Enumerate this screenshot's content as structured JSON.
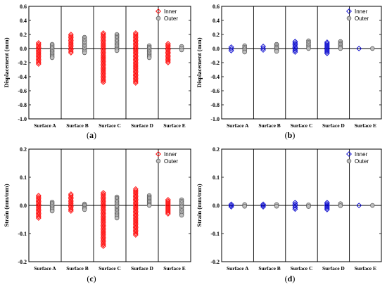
{
  "figure": {
    "panels": [
      {
        "letter": "a"
      },
      {
        "letter": "b"
      },
      {
        "letter": "c"
      },
      {
        "letter": "d"
      }
    ]
  },
  "chart_data": [
    {
      "type": "scatter",
      "ylabel": "Displacement (mm)",
      "ylim": [
        -1.0,
        0.6
      ],
      "yticks": [
        -1.0,
        -0.8,
        -0.6,
        -0.4,
        -0.2,
        0.0,
        0.2,
        0.4,
        0.6
      ],
      "tick_labels": [
        "-1.0",
        "-0.8",
        "-0.6",
        "-0.4",
        "-0.2",
        "0.0",
        "0.2",
        "0.4",
        "0.6"
      ],
      "categories": [
        "Surface A",
        "Surface B",
        "Surface C",
        "Surface D",
        "Surface E"
      ],
      "legend_position": "top-right",
      "series": [
        {
          "name": "Inner",
          "color": "#ff0000",
          "marker": "diamond-open",
          "ranges": [
            [
              -0.22,
              0.08
            ],
            [
              -0.06,
              0.2
            ],
            [
              -0.48,
              0.22
            ],
            [
              -0.49,
              0.22
            ],
            [
              -0.2,
              0.07
            ]
          ]
        },
        {
          "name": "Outer",
          "color": "#808080",
          "marker": "circle-filled",
          "ranges": [
            [
              -0.13,
              0.06
            ],
            [
              -0.06,
              0.16
            ],
            [
              -0.03,
              0.2
            ],
            [
              -0.13,
              0.04
            ],
            [
              -0.02,
              0.03
            ]
          ]
        }
      ]
    },
    {
      "type": "scatter",
      "ylabel": "Displacement (mm)",
      "ylim": [
        -1.0,
        0.6
      ],
      "yticks": [
        -1.0,
        -0.8,
        -0.6,
        -0.4,
        -0.2,
        0.0,
        0.2,
        0.4,
        0.6
      ],
      "tick_labels": [
        "-1.0",
        "-0.8",
        "-0.6",
        "-0.4",
        "-0.2",
        "0.0",
        "0.2",
        "0.4",
        "0.6"
      ],
      "categories": [
        "Surface A",
        "Surface B",
        "Surface C",
        "Surface D",
        "Surface E"
      ],
      "legend_position": "top-right",
      "series": [
        {
          "name": "Inner",
          "color": "#0000cc",
          "marker": "diamond-open",
          "ranges": [
            [
              -0.03,
              0.02
            ],
            [
              -0.02,
              0.03
            ],
            [
              -0.05,
              0.1
            ],
            [
              -0.07,
              0.09
            ],
            [
              0.0,
              0.0
            ]
          ]
        },
        {
          "name": "Outer",
          "color": "#808080",
          "marker": "circle-filled",
          "ranges": [
            [
              -0.05,
              0.04
            ],
            [
              -0.04,
              0.06
            ],
            [
              0.0,
              0.11
            ],
            [
              0.0,
              0.1
            ],
            [
              0.0,
              0.0
            ]
          ]
        }
      ]
    },
    {
      "type": "scatter",
      "ylabel": "Strain (mm/mm)",
      "ylim": [
        -0.2,
        0.2
      ],
      "yticks": [
        -0.2,
        -0.1,
        0.0,
        0.1,
        0.2
      ],
      "tick_labels": [
        "-0.2",
        "-0.1",
        "0.0",
        "0.1",
        "0.2"
      ],
      "categories": [
        "Surface A",
        "Surface B",
        "Surface C",
        "Surface D",
        "Surface E"
      ],
      "legend_position": "top-right",
      "series": [
        {
          "name": "Inner",
          "color": "#ff0000",
          "marker": "diamond-open",
          "ranges": [
            [
              -0.045,
              0.035
            ],
            [
              -0.02,
              0.04
            ],
            [
              -0.145,
              0.045
            ],
            [
              -0.105,
              0.058
            ],
            [
              -0.03,
              0.02
            ]
          ]
        },
        {
          "name": "Outer",
          "color": "#808080",
          "marker": "circle-filled",
          "ranges": [
            [
              -0.02,
              0.012
            ],
            [
              -0.015,
              0.005
            ],
            [
              -0.045,
              0.03
            ],
            [
              0.0,
              0.035
            ],
            [
              -0.035,
              0.02
            ]
          ]
        }
      ]
    },
    {
      "type": "scatter",
      "ylabel": "Strain (mm/mm)",
      "ylim": [
        -0.2,
        0.2
      ],
      "yticks": [
        -0.2,
        -0.1,
        0.0,
        0.1,
        0.2
      ],
      "tick_labels": [
        "-0.2",
        "-0.1",
        "0.0",
        "0.1",
        "0.2"
      ],
      "categories": [
        "Surface A",
        "Surface B",
        "Surface C",
        "Surface D",
        "Surface E"
      ],
      "legend_position": "top-right",
      "series": [
        {
          "name": "Inner",
          "color": "#0000cc",
          "marker": "diamond-open",
          "ranges": [
            [
              -0.005,
              0.004
            ],
            [
              -0.005,
              0.004
            ],
            [
              -0.013,
              0.01
            ],
            [
              -0.015,
              0.01
            ],
            [
              0.0,
              0.0
            ]
          ]
        },
        {
          "name": "Outer",
          "color": "#808080",
          "marker": "circle-filled",
          "ranges": [
            [
              -0.003,
              0.003
            ],
            [
              -0.003,
              0.003
            ],
            [
              -0.004,
              0.002
            ],
            [
              -0.001,
              0.006
            ],
            [
              0.0,
              0.0
            ]
          ]
        }
      ]
    }
  ]
}
